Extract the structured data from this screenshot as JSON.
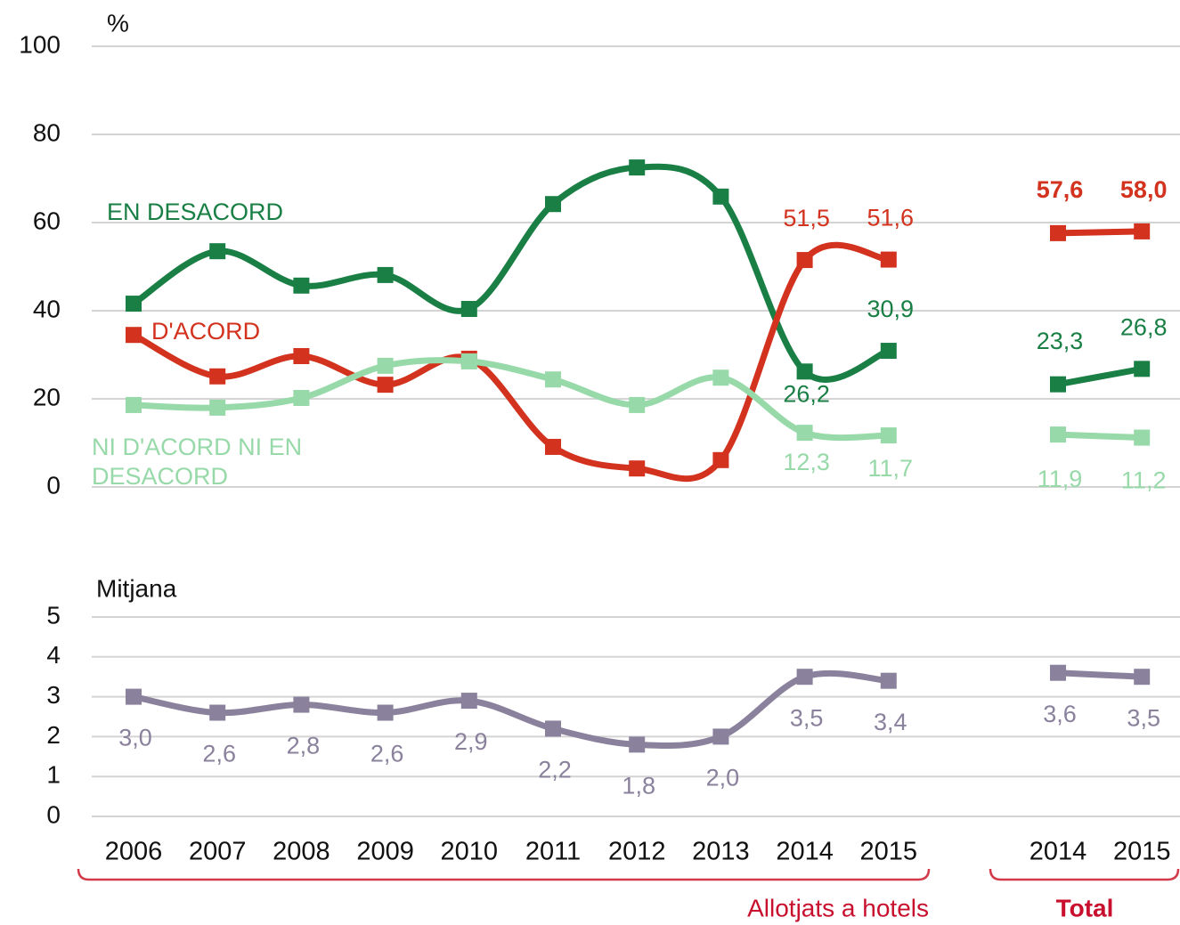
{
  "chart_data": [
    {
      "type": "line",
      "ylabel": "%",
      "ylim": [
        0,
        100
      ],
      "yticks": [
        0,
        20,
        40,
        60,
        80,
        100
      ],
      "grid": true,
      "series": [
        {
          "name": "EN DESACORD",
          "color": "#1a7f45",
          "values": [
            41.6,
            53.5,
            45.7,
            48.1,
            40.4,
            64.2,
            72.5,
            65.9,
            26.2,
            30.9,
            23.3,
            26.8
          ],
          "value_labels": [
            null,
            null,
            null,
            null,
            null,
            null,
            null,
            null,
            "26,2",
            "30,9",
            "23,3",
            "26,8"
          ]
        },
        {
          "name": "D'ACORD",
          "color": "#d2321e",
          "values": [
            34.5,
            25.1,
            29.7,
            23.2,
            29.1,
            9.1,
            4.2,
            6.1,
            51.5,
            51.6,
            57.6,
            58.0
          ],
          "value_labels": [
            null,
            null,
            null,
            null,
            null,
            null,
            null,
            null,
            "51,5",
            "51,6",
            "57,6",
            "58,0"
          ]
        },
        {
          "name": "NI D'ACORD NI EN DESACORD",
          "color": "#97d9a8",
          "values": [
            18.6,
            18.0,
            20.2,
            27.5,
            28.5,
            24.4,
            18.6,
            24.8,
            12.3,
            11.7,
            11.9,
            11.2
          ],
          "value_labels": [
            null,
            null,
            null,
            null,
            null,
            null,
            null,
            null,
            "12,3",
            "11,7",
            "11,9",
            "11,2"
          ]
        }
      ]
    },
    {
      "type": "line",
      "ylabel": "Mitjana",
      "ylim": [
        0,
        5
      ],
      "yticks": [
        0,
        1,
        2,
        3,
        4,
        5
      ],
      "grid": true,
      "series": [
        {
          "color": "#8a819c",
          "values": [
            3.0,
            2.6,
            2.8,
            2.6,
            2.9,
            2.2,
            1.8,
            2.0,
            3.5,
            3.4,
            3.6,
            3.5
          ],
          "value_labels": [
            "3,0",
            "2,6",
            "2,8",
            "2,6",
            "2,9",
            "2,2",
            "1,8",
            "2,0",
            "3,5",
            "3,4",
            "3,6",
            "3,5"
          ]
        }
      ]
    }
  ],
  "x_axis": {
    "groups": [
      {
        "label": "Allotjats a hotels",
        "categories": [
          "2006",
          "2007",
          "2008",
          "2009",
          "2010",
          "2011",
          "2012",
          "2013",
          "2014",
          "2015"
        ]
      },
      {
        "label": "Total",
        "categories": [
          "2014",
          "2015"
        ]
      }
    ]
  }
}
